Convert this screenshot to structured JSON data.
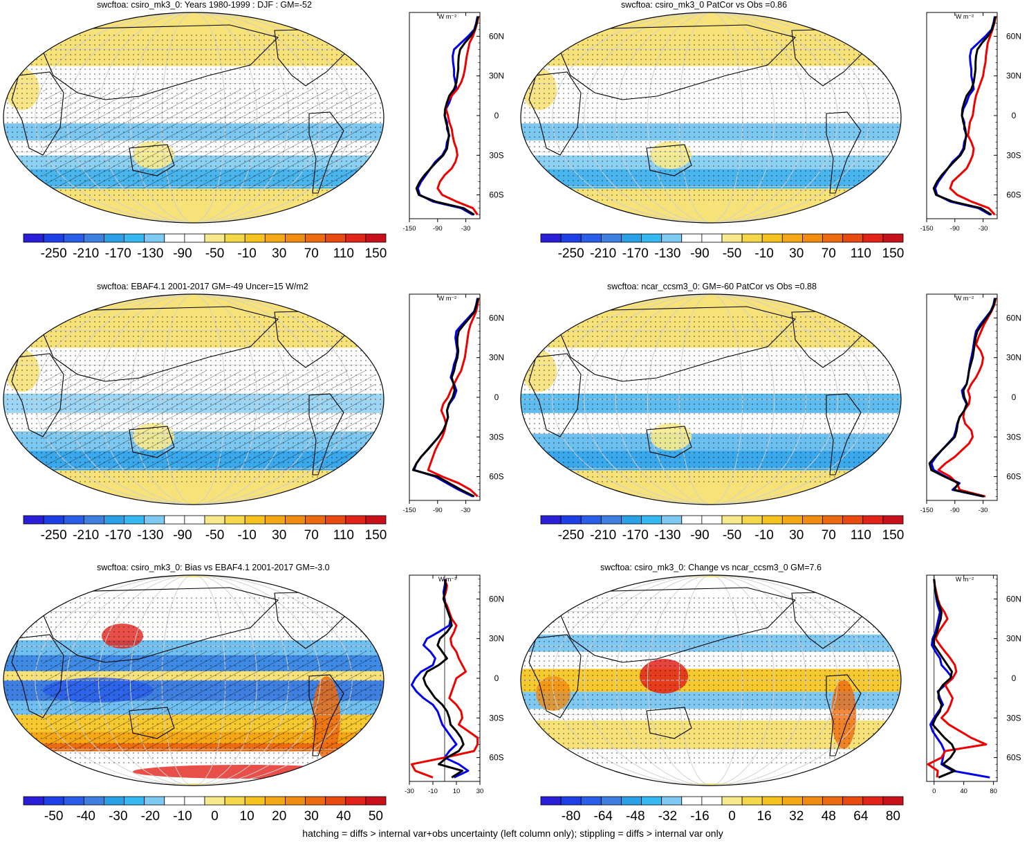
{
  "panels": [
    {
      "id": "p1",
      "title": "swcftoa: csiro_mk3_0: Years 1980-1999 : DJF : GM=-52",
      "map_style": "mean",
      "colorbar": {
        "labels": [
          "-250",
          "-210",
          "-170",
          "-130",
          "-90",
          "-50",
          "-10",
          "30",
          "70",
          "110",
          "150"
        ],
        "colors": [
          "#2a1fd6",
          "#1f3fe6",
          "#2a5ee8",
          "#3f7fe0",
          "#2aa0e6",
          "#36b8f0",
          "#7fcaf2",
          "#ffffff",
          "#ffffff",
          "#f7ea8c",
          "#f5d84a",
          "#f6c21e",
          "#f5a815",
          "#f08c10",
          "#ec6a10",
          "#e84a10",
          "#e2231a",
          "#c8101a"
        ]
      },
      "profile": {
        "unit_label": "W m⁻²",
        "lat_ticks": [
          "60N",
          "30N",
          "0",
          "30S",
          "60S"
        ],
        "x_ticks": [
          "-150",
          "-90",
          "-30"
        ],
        "xlim": [
          -150,
          0
        ],
        "series_colors": [
          "#0000ee",
          "#ee0000",
          "#000000"
        ],
        "lat": [
          75,
          70,
          65,
          60,
          55,
          50,
          45,
          40,
          35,
          30,
          25,
          20,
          15,
          10,
          5,
          0,
          -5,
          -10,
          -15,
          -20,
          -25,
          -30,
          -35,
          -40,
          -45,
          -50,
          -55,
          -60,
          -65,
          -70,
          -75
        ],
        "blue": [
          -5,
          -8,
          -12,
          -25,
          -40,
          -55,
          -58,
          -57,
          -55,
          -55,
          -52,
          -50,
          -60,
          -65,
          -72,
          -75,
          -70,
          -70,
          -65,
          -70,
          -72,
          -80,
          -95,
          -105,
          -115,
          -125,
          -132,
          -128,
          -100,
          -40,
          -15
        ],
        "red": [
          -3,
          -6,
          -10,
          -15,
          -22,
          -25,
          -28,
          -30,
          -32,
          -35,
          -40,
          -48,
          -60,
          -70,
          -72,
          -68,
          -65,
          -60,
          -58,
          -55,
          -50,
          -48,
          -52,
          -60,
          -75,
          -85,
          -90,
          -80,
          -50,
          -15,
          -5
        ],
        "black": [
          -4,
          -7,
          -11,
          -20,
          -32,
          -42,
          -45,
          -46,
          -46,
          -48,
          -50,
          -55,
          -65,
          -70,
          -74,
          -75,
          -72,
          -68,
          -66,
          -68,
          -70,
          -78,
          -92,
          -105,
          -118,
          -128,
          -135,
          -130,
          -95,
          -35,
          -12
        ]
      }
    },
    {
      "id": "p2",
      "title": "swcftoa: csiro_mk3_0 PatCor vs Obs =0.86",
      "map_style": "mean",
      "colorbar": {
        "labels": [
          "-250",
          "-210",
          "-170",
          "-130",
          "-90",
          "-50",
          "-10",
          "30",
          "70",
          "110",
          "150"
        ],
        "colors": [
          "#2a1fd6",
          "#1f3fe6",
          "#2a5ee8",
          "#3f7fe0",
          "#2aa0e6",
          "#36b8f0",
          "#7fcaf2",
          "#ffffff",
          "#ffffff",
          "#f7ea8c",
          "#f5d84a",
          "#f6c21e",
          "#f5a815",
          "#f08c10",
          "#ec6a10",
          "#e84a10",
          "#e2231a",
          "#c8101a"
        ]
      },
      "profile": {
        "unit_label": "W m⁻²",
        "lat_ticks": [
          "60N",
          "30N",
          "0",
          "30S",
          "60S"
        ],
        "x_ticks": [
          "-150",
          "-90",
          "-30"
        ],
        "xlim": [
          -150,
          0
        ],
        "series_colors": [
          "#0000ee",
          "#ee0000",
          "#000000"
        ],
        "lat": [
          75,
          70,
          65,
          60,
          55,
          50,
          45,
          40,
          35,
          30,
          25,
          20,
          15,
          10,
          5,
          0,
          -5,
          -10,
          -15,
          -20,
          -25,
          -30,
          -35,
          -40,
          -45,
          -50,
          -55,
          -60,
          -65,
          -70,
          -75
        ],
        "blue": [
          -5,
          -8,
          -12,
          -25,
          -40,
          -55,
          -58,
          -57,
          -55,
          -55,
          -52,
          -50,
          -60,
          -65,
          -72,
          -75,
          -70,
          -70,
          -65,
          -70,
          -72,
          -80,
          -95,
          -105,
          -115,
          -125,
          -132,
          -128,
          -100,
          -40,
          -15
        ],
        "red": [
          -3,
          -6,
          -10,
          -15,
          -20,
          -22,
          -24,
          -25,
          -28,
          -30,
          -35,
          -40,
          -45,
          -48,
          -50,
          -52,
          -58,
          -60,
          -62,
          -55,
          -50,
          -52,
          -58,
          -65,
          -80,
          -95,
          -100,
          -85,
          -55,
          -18,
          -5
        ],
        "black": [
          -4,
          -7,
          -11,
          -20,
          -32,
          -42,
          -45,
          -46,
          -46,
          -48,
          -50,
          -55,
          -65,
          -70,
          -74,
          -75,
          -72,
          -68,
          -66,
          -68,
          -70,
          -78,
          -92,
          -105,
          -118,
          -128,
          -135,
          -130,
          -95,
          -35,
          -12
        ]
      }
    },
    {
      "id": "p3",
      "title": "swcftoa: EBAF4.1 2001-2017 GM=-49 Uncer=15 W/m2",
      "map_style": "obs",
      "colorbar": {
        "labels": [
          "-250",
          "-210",
          "-170",
          "-130",
          "-90",
          "-50",
          "-10",
          "30",
          "70",
          "110",
          "150"
        ],
        "colors": [
          "#2a1fd6",
          "#1f3fe6",
          "#2a5ee8",
          "#3f7fe0",
          "#2aa0e6",
          "#36b8f0",
          "#7fcaf2",
          "#ffffff",
          "#ffffff",
          "#f7ea8c",
          "#f5d84a",
          "#f6c21e",
          "#f5a815",
          "#f08c10",
          "#ec6a10",
          "#e84a10",
          "#e2231a",
          "#c8101a"
        ]
      },
      "profile": {
        "unit_label": "W m⁻²",
        "lat_ticks": [
          "60N",
          "30N",
          "0",
          "30S",
          "60S"
        ],
        "x_ticks": [
          "-150",
          "-90",
          "-30"
        ],
        "xlim": [
          -150,
          0
        ],
        "series_colors": [
          "#0000ee",
          "#ee0000",
          "#000000"
        ],
        "lat": [
          75,
          70,
          65,
          60,
          55,
          50,
          45,
          40,
          35,
          30,
          25,
          20,
          15,
          10,
          5,
          0,
          -5,
          -10,
          -15,
          -20,
          -25,
          -30,
          -35,
          -40,
          -45,
          -50,
          -55,
          -60,
          -65,
          -70,
          -75
        ],
        "blue": [
          -5,
          -8,
          -12,
          -25,
          -38,
          -50,
          -52,
          -50,
          -48,
          -50,
          -55,
          -58,
          -62,
          -55,
          -50,
          -55,
          -65,
          -70,
          -68,
          -72,
          -78,
          -88,
          -100,
          -112,
          -125,
          -135,
          -140,
          -95,
          -70,
          -45,
          -15
        ],
        "red": [
          -3,
          -5,
          -8,
          -14,
          -20,
          -24,
          -26,
          -28,
          -30,
          -32,
          -36,
          -40,
          -48,
          -55,
          -62,
          -68,
          -78,
          -82,
          -76,
          -72,
          -75,
          -80,
          -88,
          -95,
          -100,
          -105,
          -110,
          -80,
          -45,
          -20,
          -5
        ],
        "black": [
          -4,
          -7,
          -11,
          -22,
          -34,
          -45,
          -48,
          -48,
          -46,
          -48,
          -52,
          -55,
          -60,
          -56,
          -54,
          -58,
          -66,
          -70,
          -68,
          -72,
          -78,
          -88,
          -100,
          -112,
          -125,
          -135,
          -142,
          -90,
          -65,
          -40,
          -12
        ]
      }
    },
    {
      "id": "p4",
      "title": "swcftoa: ncar_ccsm3_0: GM=-60 PatCor vs Obs =0.88",
      "map_style": "mean2",
      "colorbar": {
        "labels": [
          "-250",
          "-210",
          "-170",
          "-130",
          "-90",
          "-50",
          "-10",
          "30",
          "70",
          "110",
          "150"
        ],
        "colors": [
          "#2a1fd6",
          "#1f3fe6",
          "#2a5ee8",
          "#3f7fe0",
          "#2aa0e6",
          "#36b8f0",
          "#7fcaf2",
          "#ffffff",
          "#ffffff",
          "#f7ea8c",
          "#f5d84a",
          "#f6c21e",
          "#f5a815",
          "#f08c10",
          "#ec6a10",
          "#e84a10",
          "#e2231a",
          "#c8101a"
        ]
      },
      "profile": {
        "unit_label": "W m⁻²",
        "lat_ticks": [
          "60N",
          "30N",
          "0",
          "30S",
          "60S"
        ],
        "x_ticks": [
          "-150",
          "-90",
          "-30"
        ],
        "xlim": [
          -150,
          0
        ],
        "series_colors": [
          "#0000ee",
          "#ee0000",
          "#000000"
        ],
        "lat": [
          75,
          70,
          65,
          60,
          55,
          50,
          45,
          40,
          35,
          30,
          25,
          20,
          15,
          10,
          5,
          0,
          -5,
          -10,
          -15,
          -20,
          -25,
          -30,
          -35,
          -40,
          -45,
          -50,
          -55,
          -60,
          -65,
          -70,
          -75
        ],
        "blue": [
          -5,
          -8,
          -14,
          -25,
          -36,
          -45,
          -48,
          -50,
          -52,
          -55,
          -58,
          -60,
          -62,
          -65,
          -75,
          -72,
          -65,
          -70,
          -80,
          -85,
          -88,
          -92,
          -105,
          -118,
          -130,
          -140,
          -135,
          -110,
          -80,
          -95,
          -30
        ],
        "red": [
          -3,
          -6,
          -12,
          -20,
          -28,
          -34,
          -40,
          -45,
          -35,
          -30,
          -32,
          -38,
          -45,
          -55,
          -62,
          -58,
          -60,
          -70,
          -72,
          -68,
          -55,
          -52,
          -60,
          -75,
          -90,
          -110,
          -125,
          -100,
          -85,
          -80,
          -25
        ],
        "black": [
          -4,
          -7,
          -13,
          -23,
          -33,
          -42,
          -46,
          -48,
          -50,
          -52,
          -56,
          -60,
          -62,
          -65,
          -72,
          -70,
          -64,
          -70,
          -80,
          -84,
          -86,
          -90,
          -104,
          -118,
          -132,
          -144,
          -140,
          -112,
          -82,
          -92,
          -28
        ]
      }
    },
    {
      "id": "p5",
      "title": "swcftoa: csiro_mk3_0: Bias vs EBAF4.1 2001-2017 GM=-3.0",
      "map_style": "bias",
      "colorbar": {
        "labels": [
          "-50",
          "-40",
          "-30",
          "-20",
          "-10",
          "0",
          "10",
          "20",
          "30",
          "40",
          "50"
        ],
        "colors": [
          "#2a1fd6",
          "#1f3fe6",
          "#2a5ee8",
          "#3f7fe0",
          "#2aa0e6",
          "#36b8f0",
          "#7fcaf2",
          "#ffffff",
          "#ffffff",
          "#f7ea8c",
          "#f5d84a",
          "#f6c21e",
          "#f5a815",
          "#f08c10",
          "#ec6a10",
          "#e84a10",
          "#e2231a",
          "#c8101a"
        ]
      },
      "profile": {
        "unit_label": "W m⁻²",
        "lat_ticks": [
          "60N",
          "30N",
          "0",
          "30S",
          "60S"
        ],
        "x_ticks": [
          "-30",
          "-10",
          "10",
          "30"
        ],
        "xlim": [
          -30,
          30
        ],
        "series_colors": [
          "#0000ee",
          "#ee0000",
          "#000000"
        ],
        "lat": [
          75,
          70,
          65,
          60,
          55,
          50,
          45,
          40,
          35,
          30,
          25,
          20,
          15,
          10,
          5,
          0,
          -5,
          -10,
          -15,
          -20,
          -25,
          -30,
          -35,
          -40,
          -45,
          -50,
          -55,
          -60,
          -65,
          -70,
          -75
        ],
        "blue": [
          1,
          0,
          -1,
          0,
          1,
          3,
          5,
          4,
          -5,
          -15,
          -18,
          -12,
          -8,
          -10,
          -20,
          -25,
          -28,
          -24,
          -18,
          -10,
          -6,
          -4,
          -2,
          2,
          6,
          10,
          4,
          0,
          12,
          20,
          8
        ],
        "red": [
          0,
          2,
          1,
          -1,
          2,
          4,
          6,
          10,
          8,
          5,
          6,
          10,
          12,
          15,
          18,
          10,
          8,
          6,
          4,
          10,
          14,
          15,
          12,
          20,
          28,
          28,
          25,
          0,
          -28,
          -25,
          -10
        ],
        "black": [
          0,
          1,
          0,
          -1,
          1,
          3,
          5,
          6,
          2,
          -4,
          -6,
          -2,
          2,
          -5,
          -15,
          -18,
          -16,
          -12,
          -8,
          -2,
          2,
          4,
          5,
          10,
          14,
          16,
          12,
          2,
          -5,
          15,
          6
        ]
      }
    },
    {
      "id": "p6",
      "title": "swcftoa: csiro_mk3_0: Change vs ncar_ccsm3_0 GM=7.6",
      "map_style": "change",
      "colorbar": {
        "labels": [
          "-80",
          "-64",
          "-48",
          "-32",
          "-16",
          "0",
          "16",
          "32",
          "48",
          "64",
          "80"
        ],
        "colors": [
          "#2a1fd6",
          "#1f3fe6",
          "#2a5ee8",
          "#3f7fe0",
          "#2aa0e6",
          "#36b8f0",
          "#7fcaf2",
          "#ffffff",
          "#ffffff",
          "#f7ea8c",
          "#f5d84a",
          "#f6c21e",
          "#f5a815",
          "#f08c10",
          "#ec6a10",
          "#e84a10",
          "#e2231a",
          "#c8101a"
        ]
      },
      "profile": {
        "unit_label": "W m⁻²",
        "lat_ticks": [
          "60N",
          "30N",
          "0",
          "30S",
          "60S"
        ],
        "x_ticks": [
          "0",
          "40",
          "80"
        ],
        "xlim": [
          -10,
          85
        ],
        "series_colors": [
          "#0000ee",
          "#ee0000",
          "#000000"
        ],
        "lat": [
          75,
          70,
          65,
          60,
          55,
          50,
          45,
          40,
          35,
          30,
          25,
          20,
          15,
          10,
          5,
          0,
          -5,
          -10,
          -15,
          -20,
          -25,
          -30,
          -35,
          -40,
          -45,
          -50,
          -55,
          -60,
          -65,
          -70,
          -75
        ],
        "blue": [
          0,
          1,
          2,
          3,
          5,
          8,
          6,
          4,
          2,
          -2,
          -3,
          2,
          8,
          10,
          18,
          25,
          15,
          5,
          8,
          12,
          6,
          0,
          -5,
          -2,
          4,
          10,
          14,
          12,
          10,
          25,
          75
        ],
        "red": [
          0,
          1,
          3,
          5,
          8,
          14,
          18,
          12,
          6,
          2,
          8,
          15,
          22,
          28,
          30,
          25,
          15,
          20,
          25,
          22,
          18,
          10,
          20,
          35,
          50,
          70,
          15,
          10,
          -8,
          5,
          4
        ],
        "black": [
          0,
          1,
          2,
          4,
          7,
          10,
          9,
          6,
          4,
          0,
          0,
          6,
          12,
          18,
          24,
          22,
          12,
          6,
          6,
          10,
          8,
          2,
          -2,
          6,
          14,
          24,
          28,
          22,
          12,
          28,
          6
        ]
      }
    }
  ],
  "footnote": "hatching = diffs > internal var+obs uncertainty (left column only); stippling = diffs > internal var only"
}
